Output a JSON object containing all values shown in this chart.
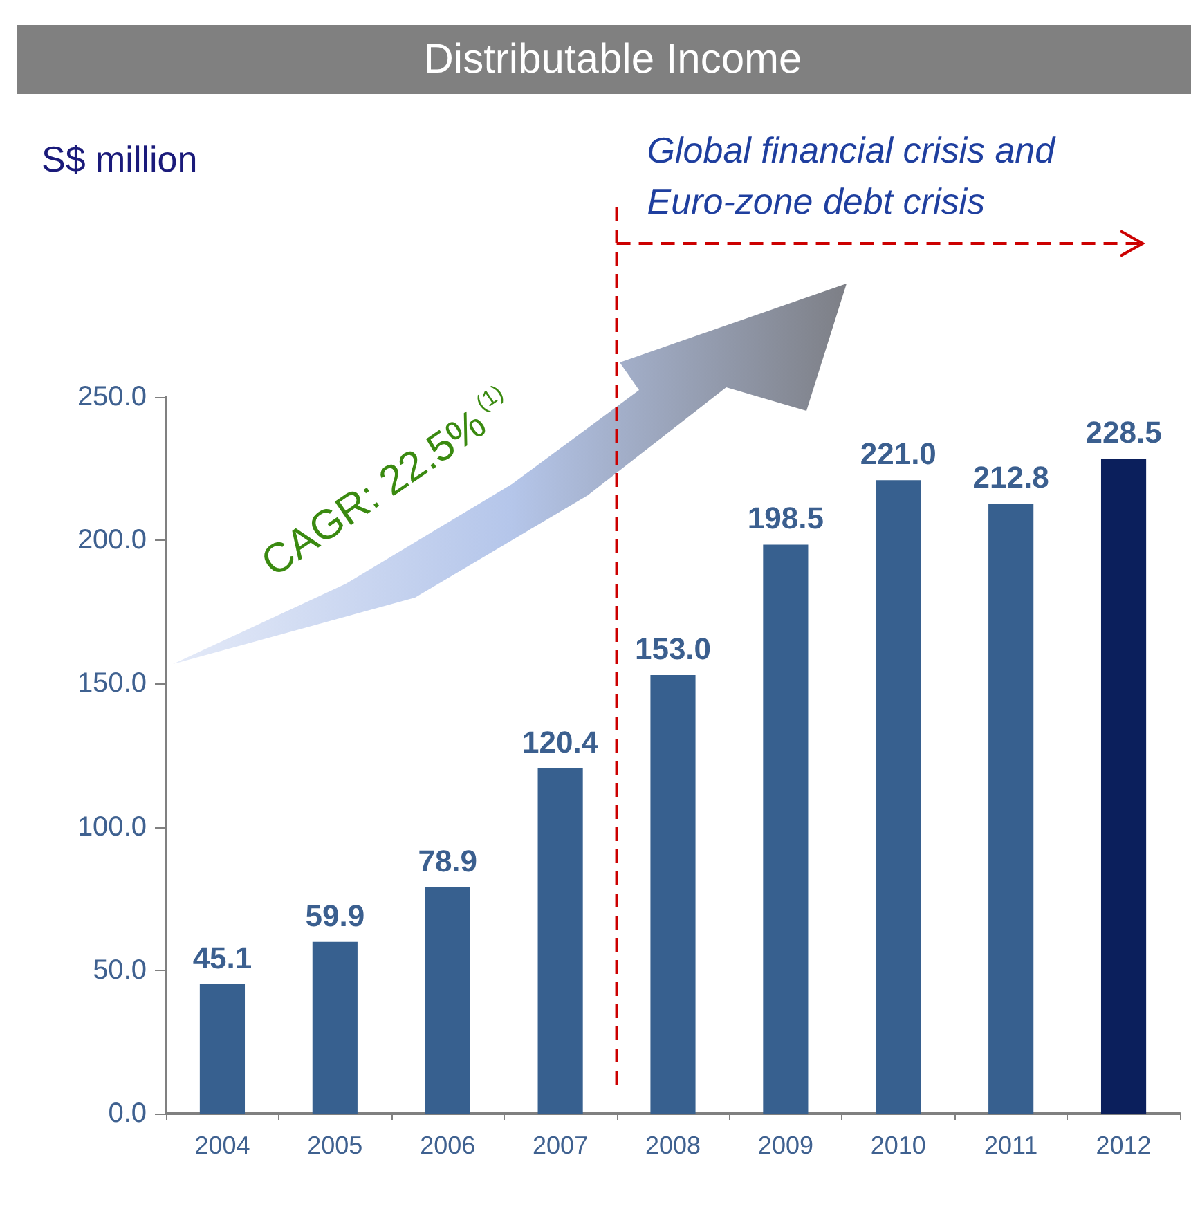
{
  "chart_data": {
    "type": "bar",
    "title": "Distributable Income",
    "categories": [
      "2004",
      "2005",
      "2006",
      "2007",
      "2008",
      "2009",
      "2010",
      "2011",
      "2012"
    ],
    "values": [
      45.1,
      59.9,
      78.9,
      120.4,
      153.0,
      198.5,
      221.0,
      212.8,
      228.5
    ],
    "colors": [
      "#37608f",
      "#37608f",
      "#37608f",
      "#37608f",
      "#37608f",
      "#37608f",
      "#37608f",
      "#37608f",
      "#0b1f5c"
    ],
    "value_labels": [
      "45.1",
      "59.9",
      "78.9",
      "120.4",
      "153.0",
      "198.5",
      "221.0",
      "212.8",
      "228.5"
    ],
    "ylim": [
      0,
      250
    ],
    "yticks": [
      {
        "value": 0,
        "label": "0.0"
      },
      {
        "value": 50,
        "label": "50.0"
      },
      {
        "value": 100,
        "label": "100.0"
      },
      {
        "value": 150,
        "label": "150.0"
      },
      {
        "value": 200,
        "label": "200.0"
      },
      {
        "value": 250,
        "label": "250.0"
      }
    ],
    "ref_lines": [
      {
        "axis": "x",
        "value": "2008",
        "label": "Global financial crisis and Euro-zone debt crisis",
        "color": "#cc0000",
        "line_style": "dashed"
      }
    ],
    "annotations": [
      "S$ million",
      "CAGR: 22.5%$^{(1)}$"
    ],
    "grid": false
  }
}
